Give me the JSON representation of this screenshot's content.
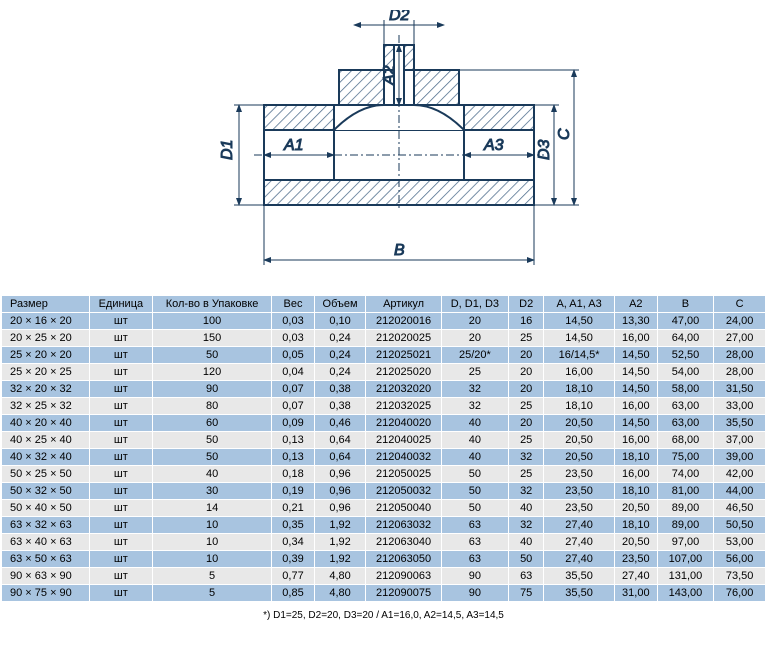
{
  "diagram": {
    "labels": {
      "D1": "D1",
      "D2": "D2",
      "D3": "D3",
      "A1": "A1",
      "A2": "A2",
      "A3": "A3",
      "B": "B",
      "C": "C"
    },
    "stroke": "#1a3a5a",
    "hatch": "#4a6a8a",
    "font": "Arial, sans-serif",
    "fontSize": 18
  },
  "table": {
    "columns": [
      "Размер",
      "Единица",
      "Кол-во в Упаковке",
      "Вес",
      "Объем",
      "Артикул",
      "D, D1, D3",
      "D2",
      "A, A1, A3",
      "A2",
      "B",
      "C"
    ],
    "rows": [
      [
        "20 × 16 × 20",
        "шт",
        "100",
        "0,03",
        "0,10",
        "212020016",
        "20",
        "16",
        "14,50",
        "13,30",
        "47,00",
        "24,00"
      ],
      [
        "20 × 25 × 20",
        "шт",
        "150",
        "0,03",
        "0,24",
        "212020025",
        "20",
        "25",
        "14,50",
        "16,00",
        "64,00",
        "27,00"
      ],
      [
        "25 × 20 × 20",
        "шт",
        "50",
        "0,05",
        "0,24",
        "212025021",
        "25/20*",
        "20",
        "16/14,5*",
        "14,50",
        "52,50",
        "28,00"
      ],
      [
        "25 × 20 × 25",
        "шт",
        "120",
        "0,04",
        "0,24",
        "212025020",
        "25",
        "20",
        "16,00",
        "14,50",
        "54,00",
        "28,00"
      ],
      [
        "32 × 20 × 32",
        "шт",
        "90",
        "0,07",
        "0,38",
        "212032020",
        "32",
        "20",
        "18,10",
        "14,50",
        "58,00",
        "31,50"
      ],
      [
        "32 × 25 × 32",
        "шт",
        "80",
        "0,07",
        "0,38",
        "212032025",
        "32",
        "25",
        "18,10",
        "16,00",
        "63,00",
        "33,00"
      ],
      [
        "40 × 20 × 40",
        "шт",
        "60",
        "0,09",
        "0,46",
        "212040020",
        "40",
        "20",
        "20,50",
        "14,50",
        "63,00",
        "35,50"
      ],
      [
        "40 × 25 × 40",
        "шт",
        "50",
        "0,13",
        "0,64",
        "212040025",
        "40",
        "25",
        "20,50",
        "16,00",
        "68,00",
        "37,00"
      ],
      [
        "40 × 32 × 40",
        "шт",
        "50",
        "0,13",
        "0,64",
        "212040032",
        "40",
        "32",
        "20,50",
        "18,10",
        "75,00",
        "39,00"
      ],
      [
        "50 × 25 × 50",
        "шт",
        "40",
        "0,18",
        "0,96",
        "212050025",
        "50",
        "25",
        "23,50",
        "16,00",
        "74,00",
        "42,00"
      ],
      [
        "50 × 32 × 50",
        "шт",
        "30",
        "0,19",
        "0,96",
        "212050032",
        "50",
        "32",
        "23,50",
        "18,10",
        "81,00",
        "44,00"
      ],
      [
        "50 × 40 × 50",
        "шт",
        "14",
        "0,21",
        "0,96",
        "212050040",
        "50",
        "40",
        "23,50",
        "20,50",
        "89,00",
        "46,50"
      ],
      [
        "63 × 32 × 63",
        "шт",
        "10",
        "0,35",
        "1,92",
        "212063032",
        "63",
        "32",
        "27,40",
        "18,10",
        "89,00",
        "50,50"
      ],
      [
        "63 × 40 × 63",
        "шт",
        "10",
        "0,34",
        "1,92",
        "212063040",
        "63",
        "40",
        "27,40",
        "20,50",
        "97,00",
        "53,00"
      ],
      [
        "63 × 50 × 63",
        "шт",
        "10",
        "0,39",
        "1,92",
        "212063050",
        "63",
        "50",
        "27,40",
        "23,50",
        "107,00",
        "56,00"
      ],
      [
        "90 × 63 × 90",
        "шт",
        "5",
        "0,77",
        "4,80",
        "212090063",
        "90",
        "63",
        "35,50",
        "27,40",
        "131,00",
        "73,50"
      ],
      [
        "90 × 75 × 90",
        "шт",
        "5",
        "0,85",
        "4,80",
        "212090075",
        "90",
        "75",
        "35,50",
        "31,00",
        "143,00",
        "76,00"
      ]
    ],
    "colWidths": [
      "72",
      "50",
      "100",
      "36",
      "40",
      "64",
      "56",
      "30",
      "60",
      "36",
      "48",
      "44"
    ],
    "evenColor": "#a8c4e0",
    "oddColor": "#e8e8e8"
  },
  "footnote": "*) D1=25, D2=20, D3=20 / A1=16,0, A2=14,5, A3=14,5"
}
